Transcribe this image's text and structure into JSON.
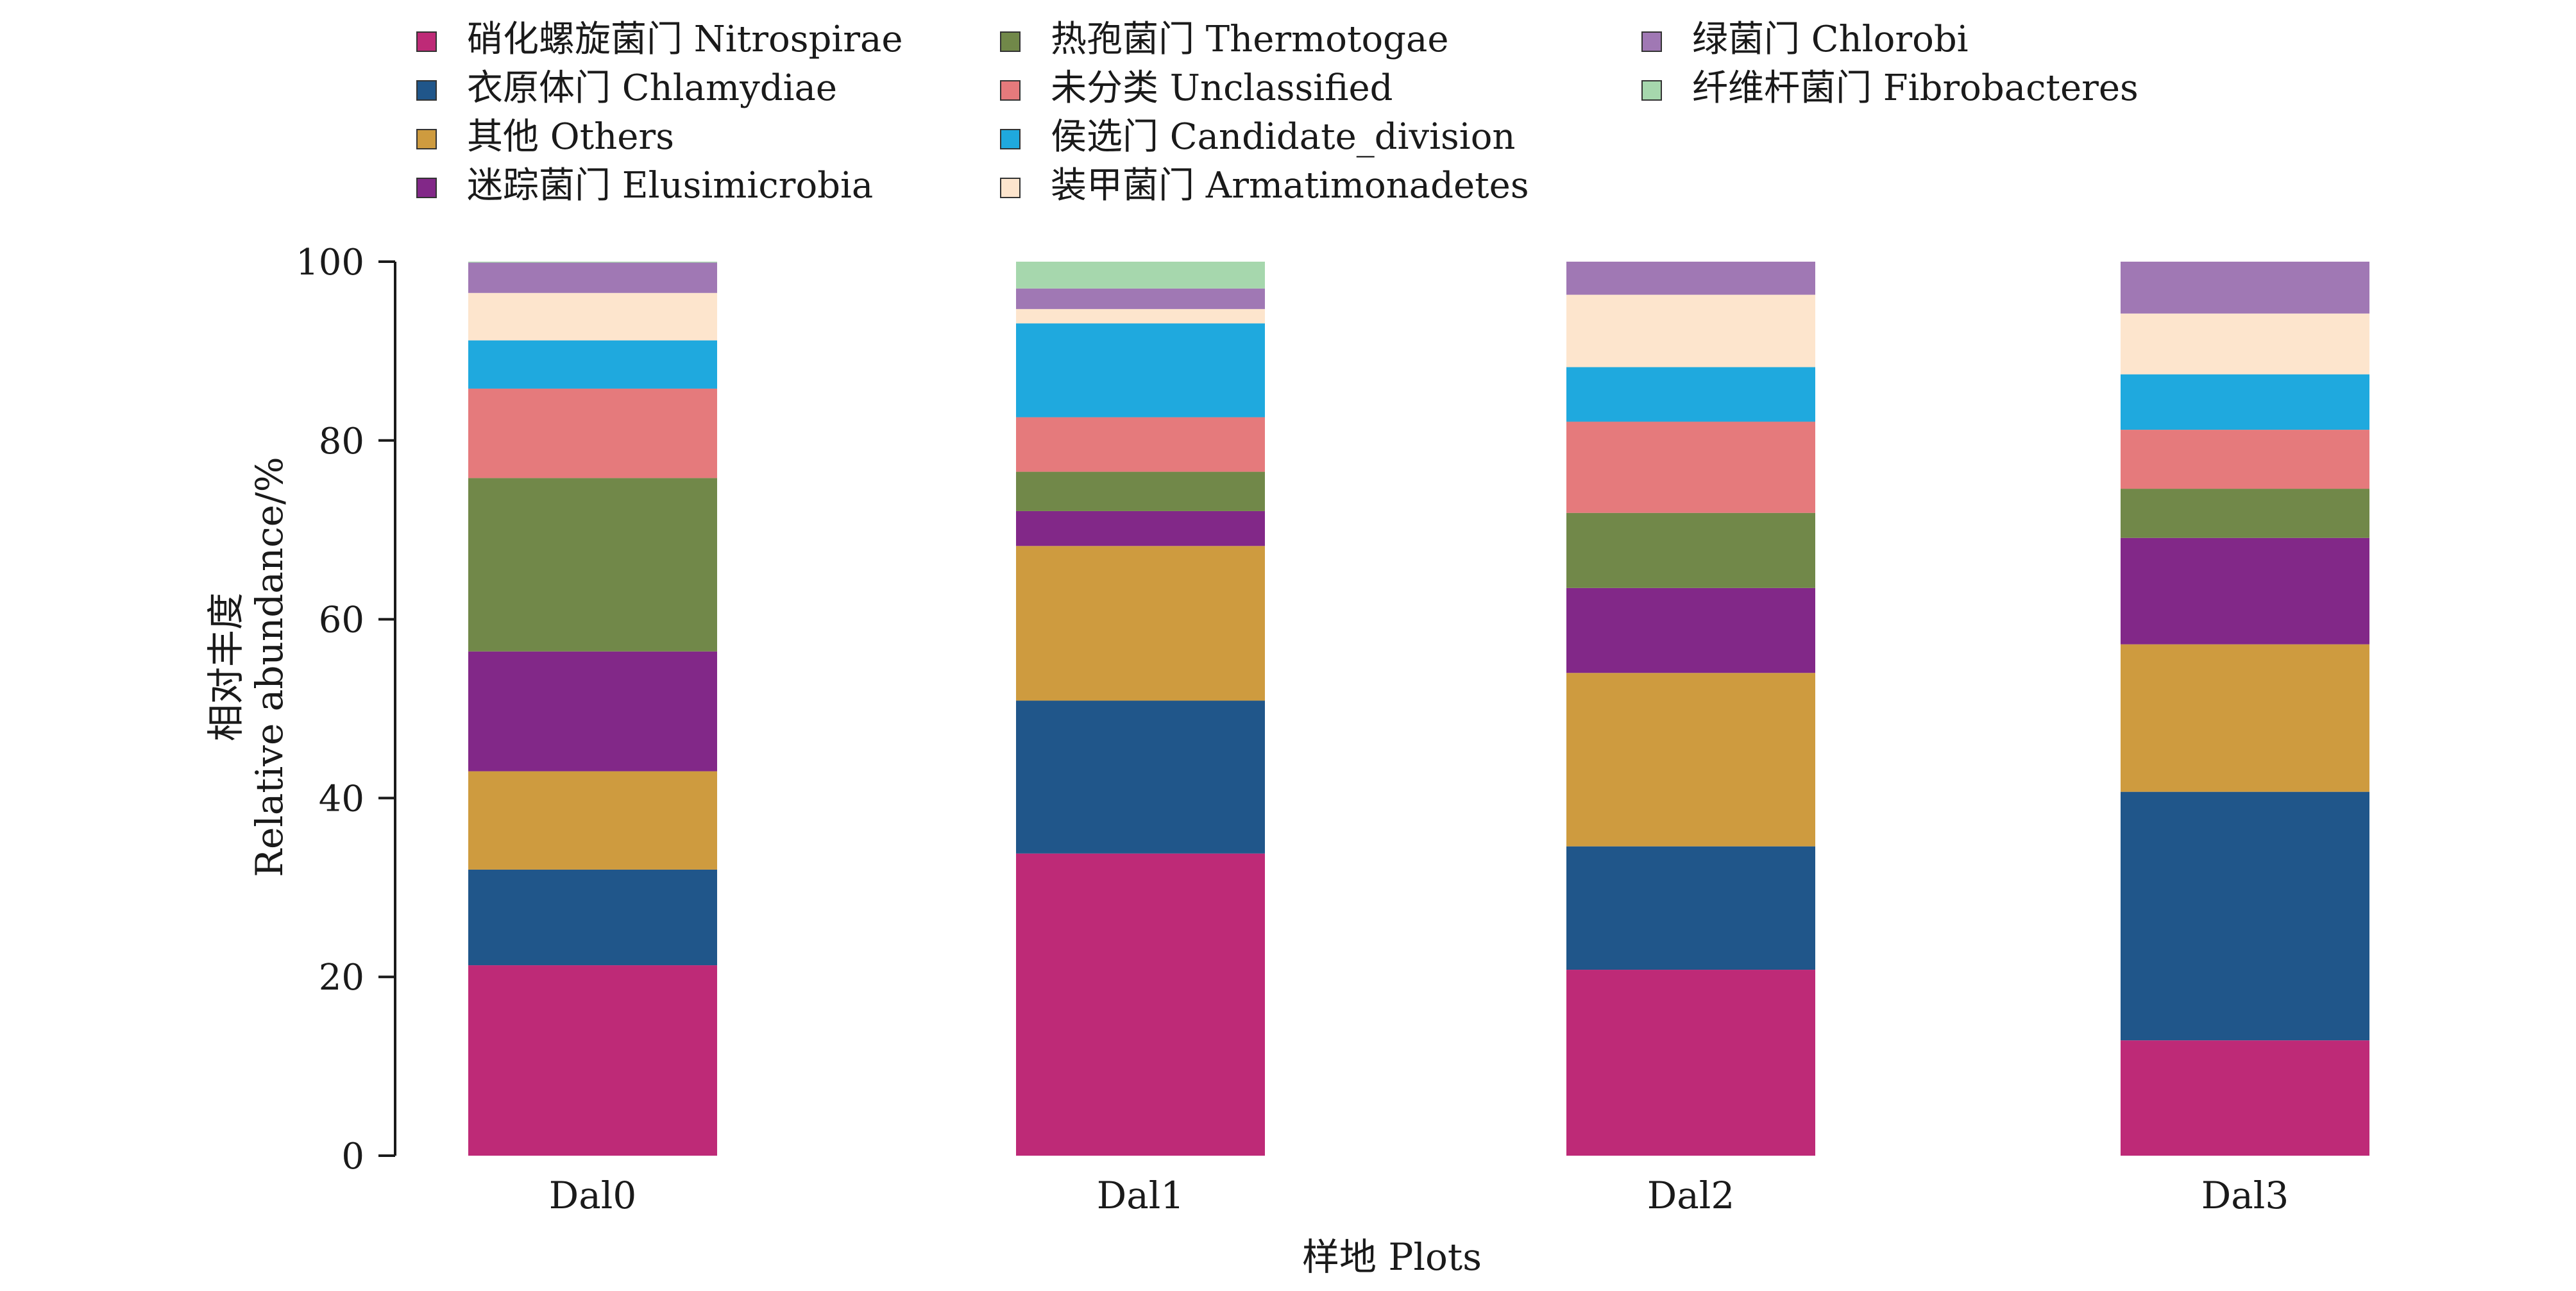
{
  "chart_data": {
    "type": "bar",
    "stacked": true,
    "categories": [
      "Dal0",
      "Dal1",
      "Dal2",
      "Dal3"
    ],
    "xlabel": "样地 Plots",
    "ylabel_cn": "相对丰度",
    "ylabel_en": "Relative abundance/%",
    "ylim": [
      0,
      100
    ],
    "yticks": [
      0,
      20,
      40,
      60,
      80,
      100
    ],
    "grid": false,
    "legend_position": "top",
    "series": [
      {
        "name": "硝化螺旋菌门 Nitrospirae",
        "color": "#BE2A77",
        "values": [
          21.3,
          33.8,
          20.8,
          12.9
        ]
      },
      {
        "name": "衣原体门 Chlamydiae",
        "color": "#20568A",
        "values": [
          10.7,
          17.1,
          13.8,
          27.8
        ]
      },
      {
        "name": "其他 Others",
        "color": "#CE9B3F",
        "values": [
          11.0,
          17.3,
          19.4,
          16.5
        ]
      },
      {
        "name": "迷踪菌门 Elusimicrobia",
        "color": "#822888",
        "values": [
          13.4,
          3.9,
          9.5,
          11.9
        ]
      },
      {
        "name": "热孢菌门 Thermotogae",
        "color": "#718849",
        "values": [
          19.4,
          4.4,
          8.4,
          5.5
        ]
      },
      {
        "name": "未分类 Unclassified",
        "color": "#E57A7C",
        "values": [
          10.0,
          6.1,
          10.2,
          6.6
        ]
      },
      {
        "name": "侯选门 Candidate_division",
        "color": "#1FA9DE",
        "values": [
          5.4,
          10.5,
          6.1,
          6.2
        ]
      },
      {
        "name": "装甲菌门 Armatimonadetes",
        "color": "#FDE5CD",
        "values": [
          5.3,
          1.6,
          8.1,
          6.8
        ]
      },
      {
        "name": "绿菌门 Chlorobi",
        "color": "#A078B4",
        "values": [
          3.4,
          2.3,
          3.7,
          5.8
        ]
      },
      {
        "name": "纤维杆菌门 Fibrobacteres",
        "color": "#A6D7AD",
        "values": [
          0.1,
          3.0,
          0.0,
          0.0
        ]
      }
    ]
  }
}
